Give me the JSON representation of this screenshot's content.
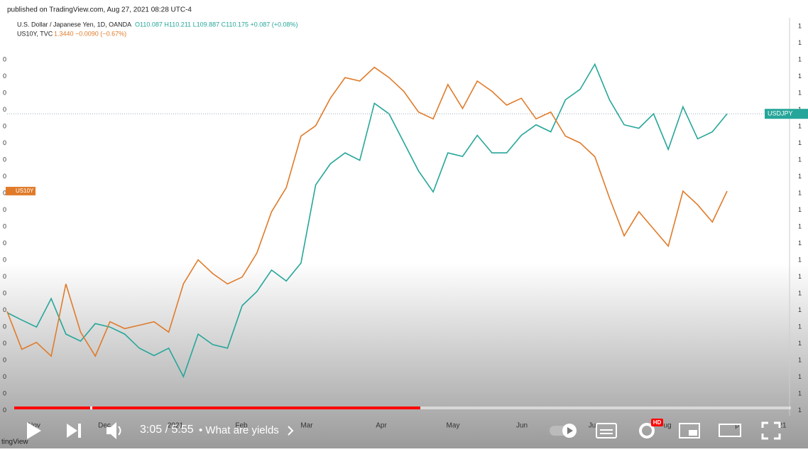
{
  "header": {
    "published": "published on TradingView.com, Aug 27, 2021 08:28 UTC-4"
  },
  "legend": {
    "main_name": "U.S. Dollar / Japanese Yen, 1D, OANDA",
    "main_values": "O110.087  H110.211  L109.887  C110.175  +0.087 (+0.08%)",
    "second_name": "US10Y, TVC",
    "second_values": "1.3440  −0.0090 (−0.67%)"
  },
  "edge_labels": {
    "right": "1",
    "left": "0"
  },
  "chart_data": {
    "type": "line",
    "xtick_labels": [
      "Nov",
      "Dec",
      "2021",
      "Feb",
      "Mar",
      "Apr",
      "May",
      "Jun",
      "Ju",
      "ug",
      "p",
      "21"
    ],
    "ylim": [
      101.9,
      112.0
    ],
    "y2lim": [
      0.717,
      1.864
    ],
    "series": [
      {
        "name": "USDJPY",
        "color": "#26a69a",
        "values": [
          104.45,
          104.26,
          104.08,
          104.81,
          103.9,
          103.72,
          104.17,
          104.08,
          103.9,
          103.54,
          103.35,
          103.54,
          102.81,
          103.9,
          103.63,
          103.54,
          104.63,
          104.99,
          105.54,
          105.26,
          105.72,
          107.72,
          108.26,
          108.54,
          108.35,
          109.81,
          109.54,
          108.81,
          108.08,
          107.54,
          108.54,
          108.45,
          108.99,
          108.54,
          108.54,
          108.99,
          109.26,
          109.08,
          109.9,
          110.17,
          110.81,
          109.9,
          109.26,
          109.17,
          109.54,
          108.63,
          109.72,
          108.9,
          109.08,
          109.54
        ]
      },
      {
        "name": "US10Y",
        "color": "#e07b2a",
        "axis": "y2",
        "values": [
          1.01,
          0.9,
          0.92,
          0.88,
          1.09,
          0.95,
          0.88,
          0.98,
          0.96,
          0.97,
          0.98,
          0.95,
          1.09,
          1.16,
          1.12,
          1.09,
          1.11,
          1.18,
          1.3,
          1.37,
          1.52,
          1.55,
          1.63,
          1.69,
          1.68,
          1.72,
          1.69,
          1.65,
          1.59,
          1.57,
          1.67,
          1.6,
          1.68,
          1.65,
          1.61,
          1.63,
          1.57,
          1.59,
          1.52,
          1.5,
          1.46,
          1.34,
          1.23,
          1.3,
          1.25,
          1.2,
          1.36,
          1.32,
          1.27,
          1.36
        ]
      }
    ]
  },
  "player": {
    "time": "3:05 / 5:55",
    "chapter": "• What are yields",
    "hd_badge": "HD",
    "watermark": "tingView"
  }
}
